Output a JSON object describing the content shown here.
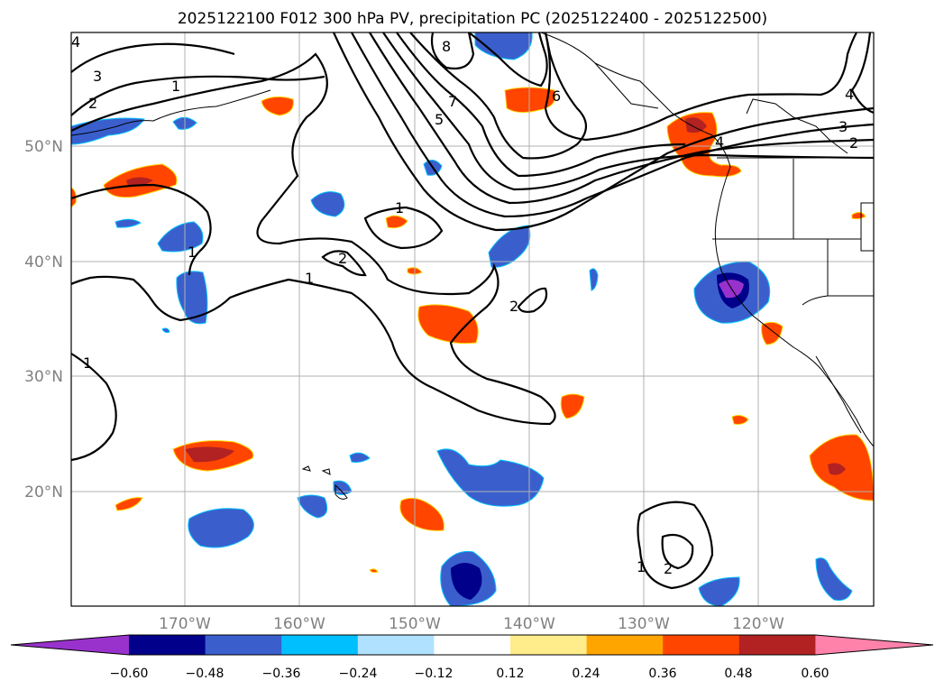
{
  "title": "2025122100 F012 300 hPa PV, precipitation PC (2025122400 - 2025122500)",
  "map": {
    "lat_labels": [
      "50°N",
      "40°N",
      "30°N",
      "20°N"
    ],
    "lon_labels": [
      "170°W",
      "160°W",
      "150°W",
      "140°W",
      "130°W",
      "120°W"
    ],
    "pv_contour_levels": [
      1,
      2,
      3,
      4,
      5,
      6,
      7,
      8
    ]
  },
  "colorbar": {
    "ticks": [
      "−0.60",
      "−0.48",
      "−0.36",
      "−0.24",
      "−0.12",
      "0.12",
      "0.24",
      "0.36",
      "0.48",
      "0.60"
    ],
    "colors": [
      "#9932cc",
      "#00008b",
      "#3a5fcd",
      "#00bfff",
      "#b0e2ff",
      "#ffffff",
      "#ffec8b",
      "#ffa500",
      "#ff4500",
      "#b22222",
      "#ff82ab"
    ],
    "extend": "both"
  },
  "contour_labels": [
    {
      "text": "3"
    },
    {
      "text": "2"
    },
    {
      "text": "1"
    },
    {
      "text": "8"
    },
    {
      "text": "7"
    },
    {
      "text": "5"
    },
    {
      "text": "6"
    },
    {
      "text": "4"
    },
    {
      "text": "3"
    },
    {
      "text": "2"
    },
    {
      "text": "4"
    },
    {
      "text": "1"
    },
    {
      "text": "1"
    },
    {
      "text": "2"
    },
    {
      "text": "1"
    },
    {
      "text": "2"
    },
    {
      "text": "1"
    },
    {
      "text": "1"
    },
    {
      "text": "2"
    },
    {
      "text": "4"
    }
  ]
}
